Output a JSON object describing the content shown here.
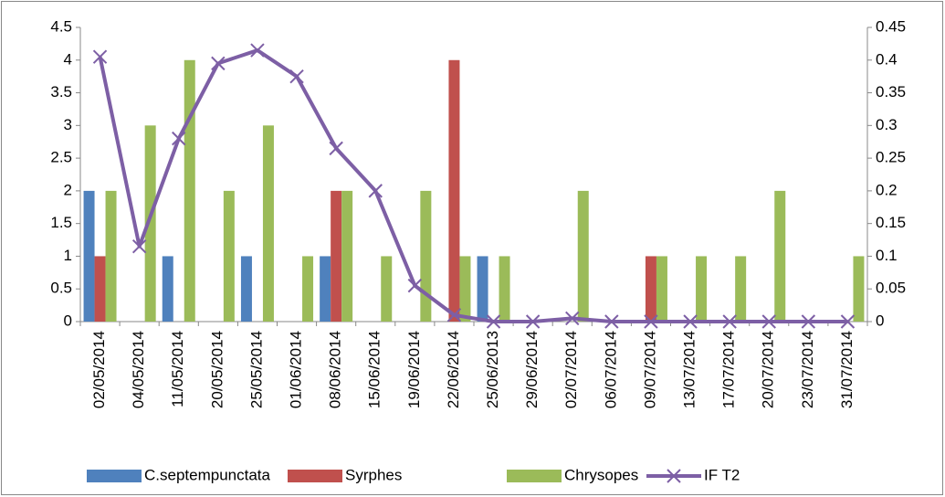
{
  "chart_data": {
    "type": "bar",
    "categories": [
      "02/05/2014",
      "04/05/2014",
      "11/05/2014",
      "20/05/2014",
      "25/05/2014",
      "01/06/2014",
      "08/06/2014",
      "15/06/2014",
      "19/06/2014",
      "22/06/2014",
      "25/06/2013",
      "29/06/2014",
      "02/07/2014",
      "06/07/2014",
      "09/07/2014",
      "13/07/2014",
      "17/07/2014",
      "20/07/2014",
      "23/07/2014",
      "31/07/2014"
    ],
    "series": [
      {
        "name": "C.septempunctata",
        "color": "#4f81bd",
        "values": [
          2,
          0,
          1,
          0,
          1,
          0,
          1,
          0,
          0,
          0,
          1,
          0,
          0,
          0,
          0,
          0,
          0,
          0,
          0,
          0
        ]
      },
      {
        "name": "Syrphes",
        "color": "#c0504d",
        "values": [
          1,
          0,
          0,
          0,
          0,
          0,
          2,
          0,
          0,
          4,
          0,
          0,
          0,
          0,
          1,
          0,
          0,
          0,
          0,
          0
        ]
      },
      {
        "name": "Chrysopes",
        "color": "#9bbb59",
        "values": [
          2,
          3,
          4,
          2,
          3,
          1,
          2,
          1,
          2,
          1,
          1,
          0,
          2,
          0,
          1,
          1,
          1,
          2,
          0,
          1
        ]
      },
      {
        "name": "IF T2",
        "color": "#7d5fa5",
        "type": "line",
        "axis": "y2",
        "values": [
          0.405,
          0.115,
          0.28,
          0.395,
          0.415,
          0.375,
          0.265,
          0.2,
          0.055,
          0.01,
          0,
          0,
          0.005,
          0,
          0,
          0,
          0,
          0,
          0,
          0
        ]
      }
    ],
    "ylim": [
      0,
      4.5
    ],
    "yticks": [
      0,
      0.5,
      1,
      1.5,
      2,
      2.5,
      3,
      3.5,
      4,
      4.5
    ],
    "y2lim": [
      0,
      0.45
    ],
    "y2ticks": [
      0,
      0.05,
      0.1,
      0.15,
      0.2,
      0.25,
      0.3,
      0.35,
      0.4,
      0.45
    ],
    "grid": false,
    "legend": "bottom"
  }
}
